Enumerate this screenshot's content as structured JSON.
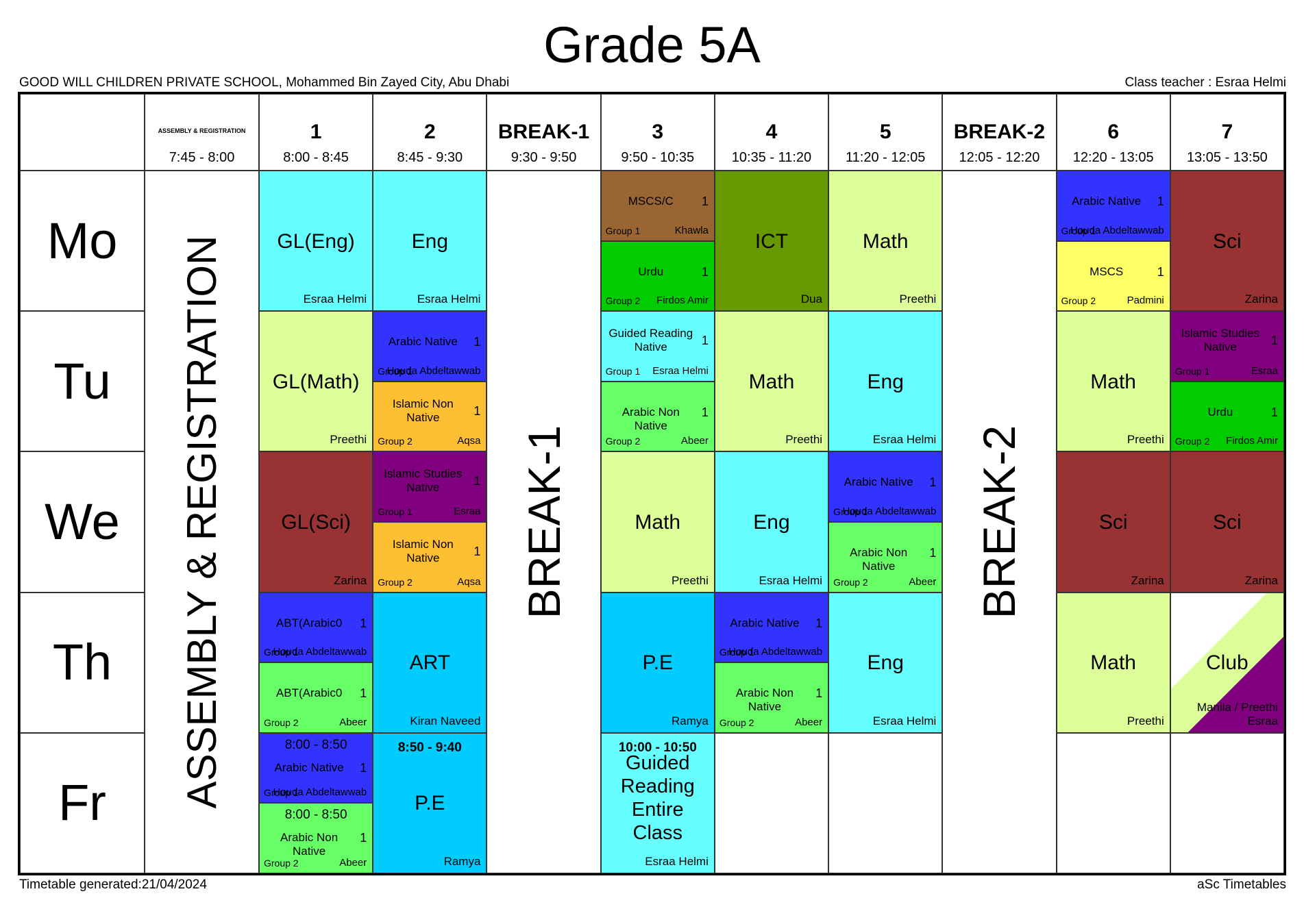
{
  "title": "Grade 5A",
  "school": "GOOD WILL CHILDREN PRIVATE SCHOOL, Mohammed Bin Zayed City, Abu Dhabi",
  "class_teacher": "Class teacher : Esraa Helmi",
  "footer": {
    "generated": "Timetable generated:21/04/2024",
    "brand": "aSc Timetables"
  },
  "colors": {
    "eng": "#66ffff",
    "math": "#ddff99",
    "sci": "#993333",
    "arabic_native": "#3333ff",
    "arabic_non_native": "#66ff66",
    "islamic_non_native": "#ffbf33",
    "islamic_native": "#800080",
    "mscs_c": "#996633",
    "urdu": "#00cc00",
    "ict": "#669900",
    "mscs": "#ffff66",
    "pe": "#00ccff",
    "art": "#00ccff",
    "club_a": "#ddff99",
    "club_b": "#800080"
  },
  "header": {
    "columns": [
      {
        "label": "ASSEMBLY & REGISTRATION",
        "time": "7:45 - 8:00"
      },
      {
        "label": "1",
        "time": "8:00 - 8:45"
      },
      {
        "label": "2",
        "time": "8:45 - 9:30"
      },
      {
        "label": "BREAK-1",
        "time": "9:30 - 9:50"
      },
      {
        "label": "3",
        "time": "9:50 - 10:35"
      },
      {
        "label": "4",
        "time": "10:35 - 11:20"
      },
      {
        "label": "5",
        "time": "11:20 - 12:05"
      },
      {
        "label": "BREAK-2",
        "time": "12:05 - 12:20"
      },
      {
        "label": "6",
        "time": "12:20 - 13:05"
      },
      {
        "label": "7",
        "time": "13:05 - 13:50"
      }
    ]
  },
  "days": [
    "Mo",
    "Tu",
    "We",
    "Th",
    "Fr"
  ],
  "spanning": {
    "assembly": "ASSEMBLY & REGISTRATION",
    "break1": "BREAK-1",
    "break2": "BREAK-2"
  },
  "cells": {
    "mo": {
      "p1": {
        "subject": "GL(Eng)",
        "teacher": "Esraa Helmi"
      },
      "p2": {
        "subject": "Eng",
        "teacher": "Esraa Helmi"
      },
      "p3a": {
        "subject": "MSCS/C",
        "num": "1",
        "group": "Group 1",
        "teacher": "Khawla"
      },
      "p3b": {
        "subject": "Urdu",
        "num": "1",
        "group": "Group 2",
        "teacher": "Firdos Amir"
      },
      "p4": {
        "subject": "ICT",
        "teacher": "Dua"
      },
      "p5": {
        "subject": "Math",
        "teacher": "Preethi"
      },
      "p6a": {
        "subject": "Arabic Native",
        "num": "1",
        "group": "Group 1",
        "teacher": "Houda Abdeltawwab"
      },
      "p6b": {
        "subject": "MSCS",
        "num": "1",
        "group": "Group 2",
        "teacher": "Padmini"
      },
      "p7": {
        "subject": "Sci",
        "teacher": "Zarina"
      }
    },
    "tu": {
      "p1": {
        "subject": "GL(Math)",
        "teacher": "Preethi"
      },
      "p2a": {
        "subject": "Arabic Native",
        "num": "1",
        "group": "Group 1",
        "teacher": "Houda Abdeltawwab"
      },
      "p2b": {
        "subject": "Islamic Non Native",
        "num": "1",
        "group": "Group 2",
        "teacher": "Aqsa"
      },
      "p3a": {
        "subject": "Guided Reading Native",
        "num": "1",
        "group": "Group 1",
        "teacher": "Esraa Helmi"
      },
      "p3b": {
        "subject": "Arabic Non Native",
        "num": "1",
        "group": "Group 2",
        "teacher": "Abeer"
      },
      "p4": {
        "subject": "Math",
        "teacher": "Preethi"
      },
      "p5": {
        "subject": "Eng",
        "teacher": "Esraa Helmi"
      },
      "p6": {
        "subject": "Math",
        "teacher": "Preethi"
      },
      "p7a": {
        "subject": "Islamic Studies Native",
        "num": "1",
        "group": "Group 1",
        "teacher": "Esraa"
      },
      "p7b": {
        "subject": "Urdu",
        "num": "1",
        "group": "Group 2",
        "teacher": "Firdos Amir"
      }
    },
    "we": {
      "p1": {
        "subject": "GL(Sci)",
        "teacher": "Zarina"
      },
      "p2a": {
        "subject": "Islamic Studies Native",
        "num": "1",
        "group": "Group 1",
        "teacher": "Esraa"
      },
      "p2b": {
        "subject": "Islamic Non Native",
        "num": "1",
        "group": "Group 2",
        "teacher": "Aqsa"
      },
      "p3": {
        "subject": "Math",
        "teacher": "Preethi"
      },
      "p4": {
        "subject": "Eng",
        "teacher": "Esraa Helmi"
      },
      "p5a": {
        "subject": "Arabic Native",
        "num": "1",
        "group": "Group 1",
        "teacher": "Houda Abdeltawwab"
      },
      "p5b": {
        "subject": "Arabic Non Native",
        "num": "1",
        "group": "Group 2",
        "teacher": "Abeer"
      },
      "p6": {
        "subject": "Sci",
        "teacher": "Zarina"
      },
      "p7": {
        "subject": "Sci",
        "teacher": "Zarina"
      }
    },
    "th": {
      "p1a": {
        "subject": "ABT(Arabic0",
        "num": "1",
        "group": "Group 1",
        "teacher": "Houda Abdeltawwab"
      },
      "p1b": {
        "subject": "ABT(Arabic0",
        "num": "1",
        "group": "Group 2",
        "teacher": "Abeer"
      },
      "p2": {
        "subject": "ART",
        "teacher": "Kiran Naveed"
      },
      "p3": {
        "subject": "P.E",
        "teacher": "Ramya"
      },
      "p4a": {
        "subject": "Arabic Native",
        "num": "1",
        "group": "Group 1",
        "teacher": "Houda Abdeltawwab"
      },
      "p4b": {
        "subject": "Arabic Non Native",
        "num": "1",
        "group": "Group 2",
        "teacher": "Abeer"
      },
      "p5": {
        "subject": "Eng",
        "teacher": "Esraa Helmi"
      },
      "p6": {
        "subject": "Math",
        "teacher": "Preethi"
      },
      "p7": {
        "subject": "Club",
        "teacher_line1": "Manila / Preethi",
        "teacher_line2": "Esraa"
      }
    },
    "fr": {
      "p1a": {
        "time": "8:00 - 8:50",
        "subject": "Arabic Native",
        "num": "1",
        "group": "Group 1",
        "teacher": "Houda Abdeltawwab"
      },
      "p1b": {
        "time": "8:00 - 8:50",
        "subject": "Arabic Non Native",
        "num": "1",
        "group": "Group 2",
        "teacher": "Abeer"
      },
      "p2": {
        "time": "8:50 - 9:40",
        "subject": "P.E",
        "teacher": "Ramya"
      },
      "p3": {
        "time": "10:00 - 10:50",
        "subject": "Guided Reading Entire Class",
        "teacher": "Esraa Helmi"
      }
    }
  }
}
